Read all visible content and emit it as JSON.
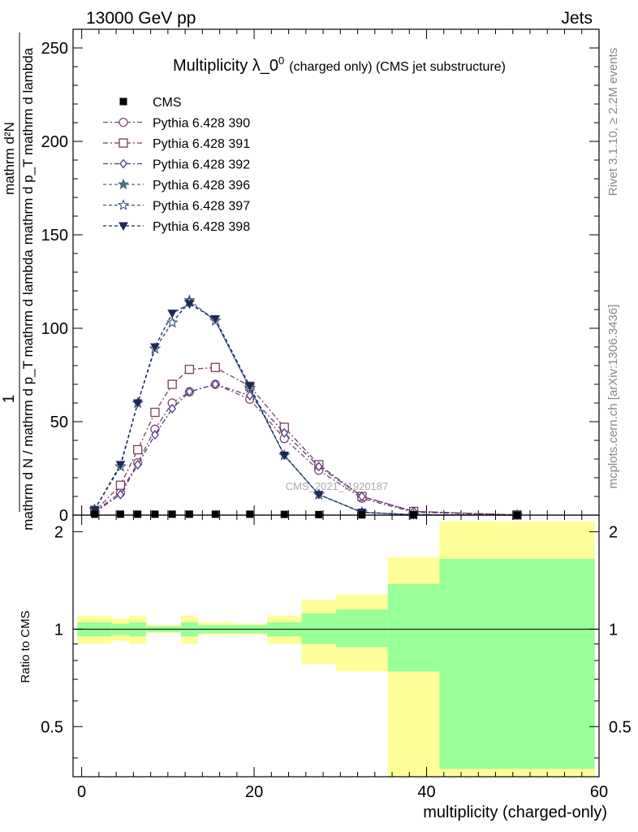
{
  "header": {
    "left": "13000 GeV pp",
    "right": "Jets"
  },
  "side": {
    "rivet": "Rivet 3.1.10, ≥ 2.2M events",
    "mcplots": "mcplots.cern.ch [arXiv:1306.3436]"
  },
  "watermark": "CMS_2021_I1920187",
  "colors": {
    "p390": "#7f4a6e",
    "p391": "#7a3f57",
    "p392": "#4e3a7f",
    "p396": "#4b6d7a",
    "p397": "#3a5577",
    "p398": "#1d2a55",
    "band_inner": "#99ff99",
    "band_outer": "#ffff99"
  },
  "chart_data": [
    {
      "type": "line",
      "title": "Multiplicity λ_0",
      "title_sup": "0",
      "title_small": "(charged only) (CMS jet substructure)",
      "ylabel_lines": [
        "1",
        "mathrm d N / mathrm d p_T mathrm d lambda",
        "mathrm d²N",
        "mathrm d p_T mathrm d lambda"
      ],
      "xlim": [
        -1,
        60
      ],
      "ylim": [
        0,
        260
      ],
      "yticks": [
        0,
        50,
        100,
        150,
        200,
        250
      ],
      "x": [
        1.5,
        4.5,
        6.5,
        8.5,
        10.5,
        12.5,
        15.5,
        19.5,
        23.5,
        27.5,
        32.5,
        38.5,
        50.5
      ],
      "series": [
        {
          "name": "CMS",
          "marker": "square",
          "values": [
            0.5,
            0.5,
            0.5,
            0.5,
            0.5,
            0.5,
            0.5,
            0.5,
            0.4,
            0.3,
            0.1,
            0.05,
            0.01
          ]
        },
        {
          "name": "Pythia 6.428 390",
          "marker": "circle-open",
          "values": [
            2,
            12,
            28,
            46,
            60,
            66,
            70,
            62,
            41,
            24,
            9,
            1.5,
            0.1
          ]
        },
        {
          "name": "Pythia 6.428 391",
          "marker": "square-open",
          "values": [
            2,
            16,
            35,
            55,
            70,
            78,
            79,
            69,
            47,
            27,
            10,
            2,
            0.1
          ]
        },
        {
          "name": "Pythia 6.428 392",
          "marker": "diamond-open",
          "values": [
            1.5,
            11,
            27,
            43,
            57,
            66,
            70,
            64,
            44,
            26,
            10,
            2,
            0.1
          ]
        },
        {
          "name": "Pythia 6.428 396",
          "marker": "star-filled",
          "values": [
            3,
            26,
            60,
            89,
            103,
            115,
            104,
            68,
            32,
            11,
            1.5,
            0.2,
            0.01
          ]
        },
        {
          "name": "Pythia 6.428 397",
          "marker": "star-open",
          "values": [
            3,
            26,
            60,
            89,
            103,
            114,
            104,
            68,
            32,
            11,
            1.5,
            0.2,
            0.01
          ]
        },
        {
          "name": "Pythia 6.428 398",
          "marker": "triangle-down",
          "values": [
            3,
            27,
            60,
            90,
            108,
            113,
            105,
            69,
            32,
            11,
            1.5,
            0.2,
            0.01
          ]
        }
      ]
    },
    {
      "type": "area",
      "ylabel": "Ratio to CMS",
      "xlabel": "multiplicity (charged-only)",
      "xlim": [
        -1,
        60
      ],
      "ylim": [
        0.35,
        2.25
      ],
      "yticks": [
        0.5,
        1,
        2
      ],
      "xticks": [
        0,
        20,
        40,
        60
      ],
      "bins": [
        {
          "lo": -0.5,
          "hi": 3.5,
          "inner": [
            0.95,
            1.05
          ],
          "outer": [
            0.9,
            1.1
          ]
        },
        {
          "lo": 3.5,
          "hi": 5.5,
          "inner": [
            0.96,
            1.04
          ],
          "outer": [
            0.92,
            1.08
          ]
        },
        {
          "lo": 5.5,
          "hi": 7.5,
          "inner": [
            0.95,
            1.05
          ],
          "outer": [
            0.9,
            1.1
          ]
        },
        {
          "lo": 7.5,
          "hi": 9.5,
          "inner": [
            0.98,
            1.02
          ],
          "outer": [
            0.97,
            1.03
          ]
        },
        {
          "lo": 9.5,
          "hi": 11.5,
          "inner": [
            0.98,
            1.02
          ],
          "outer": [
            0.97,
            1.03
          ]
        },
        {
          "lo": 11.5,
          "hi": 13.5,
          "inner": [
            0.95,
            1.05
          ],
          "outer": [
            0.9,
            1.1
          ]
        },
        {
          "lo": 13.5,
          "hi": 17.5,
          "inner": [
            0.97,
            1.03
          ],
          "outer": [
            0.96,
            1.05
          ]
        },
        {
          "lo": 17.5,
          "hi": 21.5,
          "inner": [
            0.97,
            1.03
          ],
          "outer": [
            0.96,
            1.04
          ]
        },
        {
          "lo": 21.5,
          "hi": 25.5,
          "inner": [
            0.95,
            1.05
          ],
          "outer": [
            0.9,
            1.1
          ]
        },
        {
          "lo": 25.5,
          "hi": 29.5,
          "inner": [
            0.9,
            1.12
          ],
          "outer": [
            0.78,
            1.23
          ]
        },
        {
          "lo": 29.5,
          "hi": 35.5,
          "inner": [
            0.88,
            1.15
          ],
          "outer": [
            0.74,
            1.28
          ]
        },
        {
          "lo": 35.5,
          "hi": 41.5,
          "inner": [
            0.74,
            1.38
          ],
          "outer": [
            0.35,
            1.67
          ]
        },
        {
          "lo": 41.5,
          "hi": 59.5,
          "inner": [
            0.37,
            1.65
          ],
          "outer": [
            0.35,
            2.15
          ]
        }
      ]
    }
  ]
}
